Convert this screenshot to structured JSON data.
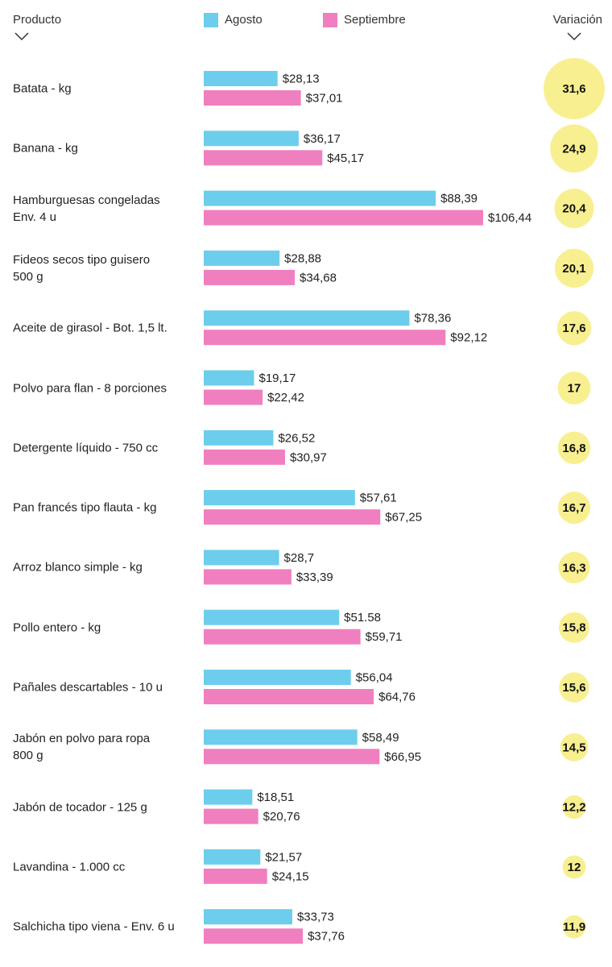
{
  "chart_data": {
    "type": "bar",
    "orientation": "horizontal",
    "category_label": "Producto",
    "categories": [
      "Batata - kg",
      "Banana - kg",
      "Hamburguesas congeladas\nEnv. 4 u",
      "Fideos secos tipo guisero\n500 g",
      "Aceite de girasol - Bot. 1,5 lt.",
      "Polvo para flan - 8 porciones",
      "Detergente líquido - 750 cc",
      "Pan francés tipo flauta - kg",
      "Arroz blanco simple - kg",
      "Pollo entero - kg",
      "Pañales descartables - 10 u",
      "Jabón en polvo para ropa\n800 g",
      "Jabón de tocador - 125 g",
      "Lavandina - 1.000 cc",
      "Salchicha tipo viena - Env. 6 u"
    ],
    "series": [
      {
        "name": "Agosto",
        "color": "#6dcdec",
        "label_color": "#4fbde3",
        "values": [
          28.13,
          36.17,
          88.39,
          28.88,
          78.36,
          19.17,
          26.52,
          57.61,
          28.7,
          51.58,
          56.04,
          58.49,
          18.51,
          21.57,
          33.73
        ],
        "value_labels": [
          "$28,13",
          "$36,17",
          "$88,39",
          "$28,88",
          "$78,36",
          "$19,17",
          "$26,52",
          "$57,61",
          "$28,7",
          "$51.58",
          "$56,04",
          "$58,49",
          "$18,51",
          "$21,57",
          "$33,73"
        ]
      },
      {
        "name": "Septiembre",
        "color": "#f07fc0",
        "label_color": "#e668b0",
        "values": [
          37.01,
          45.17,
          106.44,
          34.68,
          92.12,
          22.42,
          30.97,
          67.25,
          33.39,
          59.71,
          64.76,
          66.95,
          20.76,
          24.15,
          37.76
        ],
        "value_labels": [
          "$37,01",
          "$45,17",
          "$106,44",
          "$34,68",
          "$92,12",
          "$22,42",
          "$30,97",
          "$67,25",
          "$33,39",
          "$59,71",
          "$64,76",
          "$66,95",
          "$20,76",
          "$24,15",
          "$37,76"
        ]
      }
    ],
    "variation": {
      "title": "Variación",
      "color": "#f8ef90",
      "values": [
        31.6,
        24.9,
        20.4,
        20.1,
        17.6,
        17,
        16.8,
        16.7,
        16.3,
        15.8,
        15.6,
        14.5,
        12.2,
        12,
        11.9
      ],
      "value_labels": [
        "31,6",
        "24,9",
        "20,4",
        "20,1",
        "17,6",
        "17",
        "16,8",
        "16,7",
        "16,3",
        "15,8",
        "15,6",
        "14,5",
        "12,2",
        "12",
        "11,9"
      ]
    }
  }
}
